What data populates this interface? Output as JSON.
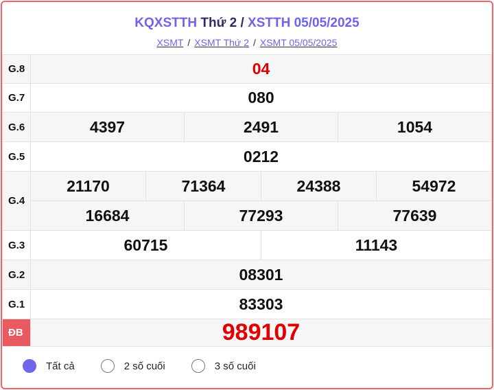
{
  "header": {
    "title_a": "KQXSTTH",
    "title_b": "Thứ 2",
    "title_sep": "/",
    "title_c": "XSTTH 05/05/2025"
  },
  "breadcrumb": [
    "XSMT",
    "XSMT Thứ 2",
    "XSMT 05/05/2025"
  ],
  "breadcrumb_sep": "/",
  "prizes": {
    "g8": {
      "label": "G.8",
      "values": [
        "04"
      ]
    },
    "g7": {
      "label": "G.7",
      "values": [
        "080"
      ]
    },
    "g6": {
      "label": "G.6",
      "values": [
        "4397",
        "2491",
        "1054"
      ]
    },
    "g5": {
      "label": "G.5",
      "values": [
        "0212"
      ]
    },
    "g4": {
      "label": "G.4",
      "values": [
        "21170",
        "71364",
        "24388",
        "54972",
        "16684",
        "77293",
        "77639"
      ]
    },
    "g3": {
      "label": "G.3",
      "values": [
        "60715",
        "11143"
      ]
    },
    "g2": {
      "label": "G.2",
      "values": [
        "08301"
      ]
    },
    "g1": {
      "label": "G.1",
      "values": [
        "83303"
      ]
    },
    "db": {
      "label": "ĐB",
      "values": [
        "989107"
      ]
    }
  },
  "filter": {
    "options": [
      "Tất cả",
      "2 số cuối",
      "3 số cuối"
    ],
    "selected": "Tất cả"
  },
  "colors": {
    "accent": "#6c63ee",
    "special": "#e00000",
    "border": "#e8676b"
  }
}
